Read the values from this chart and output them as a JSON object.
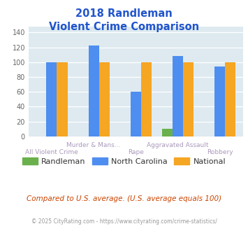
{
  "title_line1": "2018 Randleman",
  "title_line2": "Violent Crime Comparison",
  "categories": [
    "All Violent Crime",
    "Murder & Mans...",
    "Rape",
    "Aggravated Assault",
    "Robbery"
  ],
  "randleman": [
    0,
    0,
    0,
    10,
    0
  ],
  "north_carolina": [
    100,
    122,
    60,
    108,
    94
  ],
  "national": [
    100,
    100,
    100,
    100,
    100
  ],
  "randleman_color": "#6ab04c",
  "nc_color": "#4d8ef0",
  "national_color": "#f5a623",
  "ylabel_ticks": [
    0,
    20,
    40,
    60,
    80,
    100,
    120,
    140
  ],
  "ylim": [
    0,
    148
  ],
  "plot_bg": "#deeaf0",
  "footer_text": "© 2025 CityRating.com - https://www.cityrating.com/crime-statistics/",
  "comparison_text": "Compared to U.S. average. (U.S. average equals 100)",
  "title_color": "#2255cc",
  "label_color_upper": "#aa99bb",
  "label_color_lower": "#aa99bb",
  "legend_text_color": "#333333",
  "footer_color": "#999999",
  "comparison_color": "#cc4400"
}
